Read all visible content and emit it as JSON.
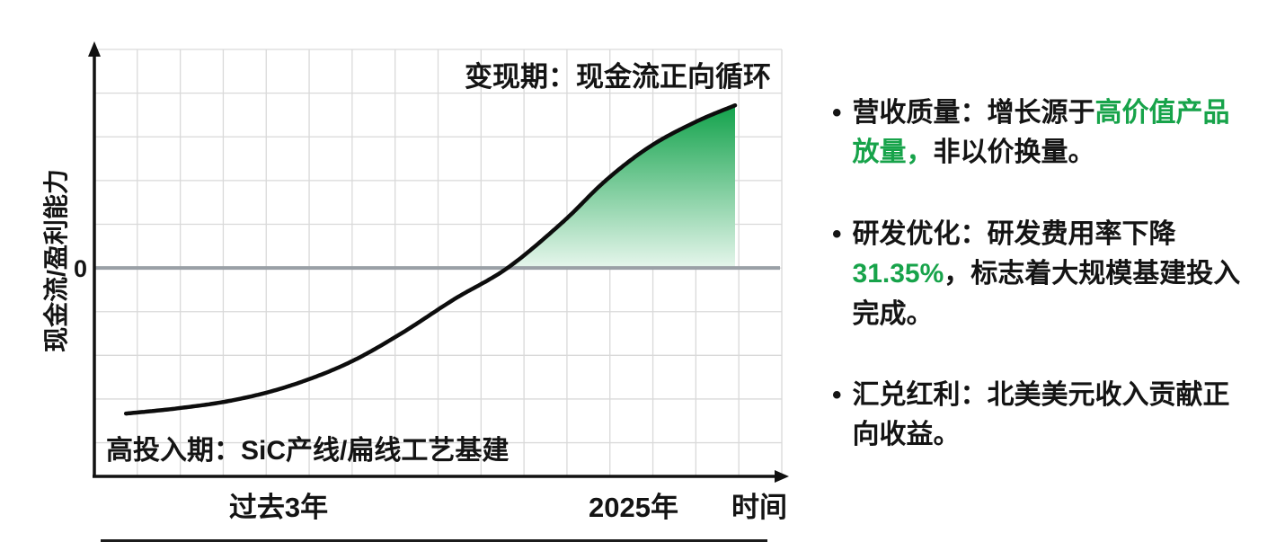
{
  "colors": {
    "green": "#17a34a",
    "text": "#141414",
    "curve": "#0d0d0d",
    "grid": "#d9d9d9",
    "zero_line": "#9aa0a6",
    "fill_top": "#12a24b",
    "fill_bottom": "#e6f6ec",
    "axis": "#111111"
  },
  "chart_data": {
    "type": "area",
    "title": "",
    "ylabel": "现金流/盈利能力",
    "xlabel": "时间",
    "x_ticks": [
      "过去3年",
      "2025年"
    ],
    "zero_label": "0",
    "annotations": {
      "monetization": "变现期：现金流正向循环",
      "investment": "高投入期：SiC产线/扁线工艺基建"
    },
    "grid": true,
    "ylim": [
      -1.45,
      1.52
    ],
    "zero_crossing_x": 0.601,
    "curve_points": [
      [
        0.046,
        -1.013
      ],
      [
        0.124,
        -0.975
      ],
      [
        0.203,
        -0.919
      ],
      [
        0.281,
        -0.825
      ],
      [
        0.366,
        -0.669
      ],
      [
        0.444,
        -0.463
      ],
      [
        0.523,
        -0.219
      ],
      [
        0.601,
        0.0
      ],
      [
        0.68,
        0.313
      ],
      [
        0.745,
        0.613
      ],
      [
        0.81,
        0.85
      ],
      [
        0.876,
        1.019
      ],
      [
        0.932,
        1.131
      ]
    ]
  },
  "bullets": [
    {
      "segments": [
        {
          "text": "营收质量：增长源于",
          "color": "#141414"
        },
        {
          "text": "高价值产品放量，",
          "color": "#17a34a"
        },
        {
          "text": "非以价换量。",
          "color": "#141414"
        }
      ]
    },
    {
      "segments": [
        {
          "text": "研发优化：研发费用率下降 ",
          "color": "#141414"
        },
        {
          "text": "31.35%",
          "color": "#17a34a"
        },
        {
          "text": "，标志着大规模基建投入完成。",
          "color": "#141414"
        }
      ]
    },
    {
      "segments": [
        {
          "text": "汇兑红利：北美美元收入贡献正向收益。",
          "color": "#141414"
        }
      ]
    }
  ]
}
